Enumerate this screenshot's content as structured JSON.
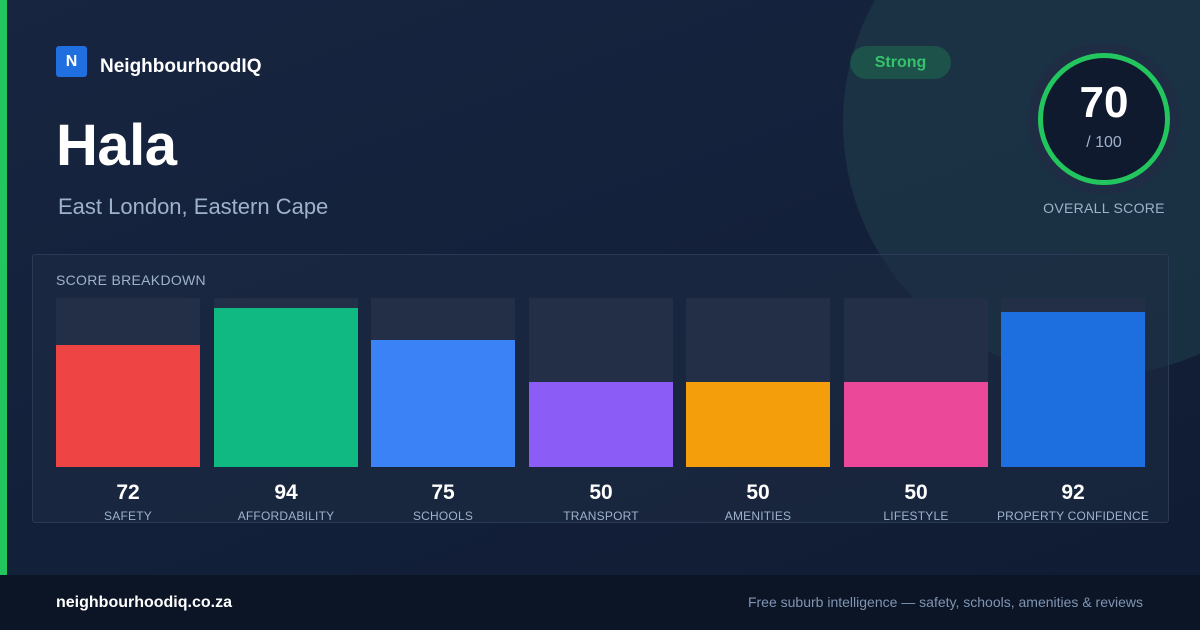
{
  "brand": {
    "logo_letter": "N",
    "name": "NeighbourhoodIQ"
  },
  "suburb": {
    "name": "Hala",
    "location": "East London, Eastern Cape"
  },
  "badge": {
    "label": "Strong",
    "color": "#22c55e"
  },
  "overall": {
    "score": "70",
    "max": "/ 100",
    "label": "OVERALL SCORE"
  },
  "breakdown": {
    "title": "SCORE BREAKDOWN",
    "items": [
      {
        "label": "SAFETY",
        "value": 72,
        "color": "#ef4444"
      },
      {
        "label": "AFFORDABILITY",
        "value": 94,
        "color": "#10b981"
      },
      {
        "label": "SCHOOLS",
        "value": 75,
        "color": "#3b82f6"
      },
      {
        "label": "TRANSPORT",
        "value": 50,
        "color": "#8b5cf6"
      },
      {
        "label": "AMENITIES",
        "value": 50,
        "color": "#f59e0b"
      },
      {
        "label": "LIFESTYLE",
        "value": 50,
        "color": "#ec4899"
      },
      {
        "label": "PROPERTY CONFIDENCE",
        "value": 92,
        "color": "#1d6fe0"
      }
    ]
  },
  "footer": {
    "url": "neighbourhoodiq.co.za",
    "tagline": "Free suburb intelligence — safety, schools, amenities & reviews"
  }
}
